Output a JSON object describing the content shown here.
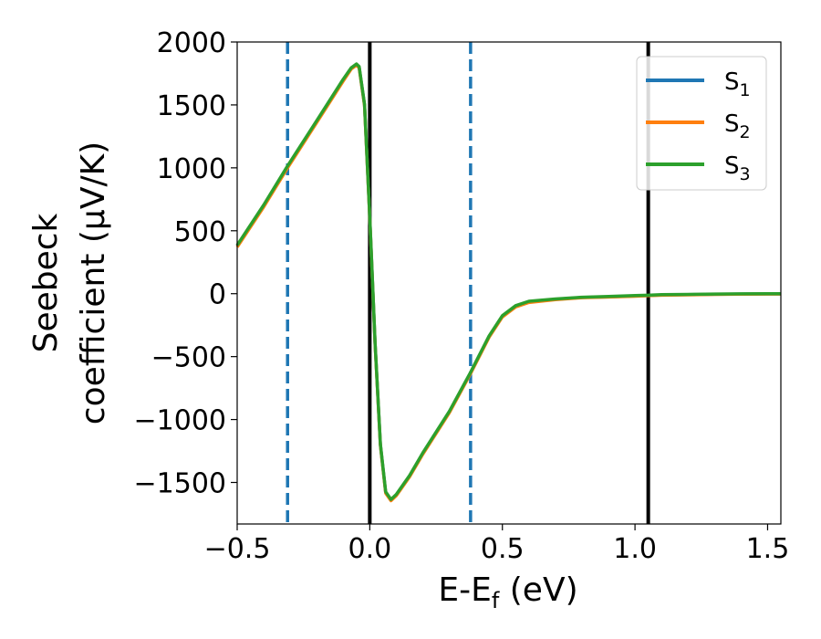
{
  "chart_data": {
    "type": "line",
    "xlabel": "E-E",
    "xlabel_sub": "f",
    "xlabel_unit": " (eV)",
    "ylabel_line1": "Seebeck",
    "ylabel_line2": "coefficient  (μV/K)",
    "xlim": [
      -0.5,
      1.55
    ],
    "ylim": [
      -1830,
      2000
    ],
    "x_ticks": [
      -0.5,
      0.0,
      0.5,
      1.0,
      1.5
    ],
    "x_tick_labels": [
      "−0.5",
      "0.0",
      "0.5",
      "1.0",
      "1.5"
    ],
    "y_ticks": [
      -1500,
      -1000,
      -500,
      0,
      500,
      1000,
      1500,
      2000
    ],
    "y_tick_labels": [
      "−1500",
      "−1000",
      "−500",
      "0",
      "500",
      "1000",
      "1500",
      "2000"
    ],
    "vertical_lines": [
      {
        "x": -0.31,
        "style": "dashed",
        "color": "#1f77b4"
      },
      {
        "x": 0.0,
        "style": "solid",
        "color": "#000000"
      },
      {
        "x": 0.38,
        "style": "dashed",
        "color": "#1f77b4"
      },
      {
        "x": 1.05,
        "style": "solid",
        "color": "#000000"
      }
    ],
    "legend_position": "top-right",
    "x": [
      -0.5,
      -0.4,
      -0.31,
      -0.2,
      -0.1,
      -0.07,
      -0.05,
      -0.04,
      -0.02,
      0.0,
      0.02,
      0.04,
      0.06,
      0.08,
      0.1,
      0.15,
      0.2,
      0.3,
      0.38,
      0.45,
      0.5,
      0.55,
      0.6,
      0.7,
      0.8,
      0.9,
      1.0,
      1.05,
      1.1,
      1.2,
      1.3,
      1.4,
      1.5,
      1.55
    ],
    "series": [
      {
        "name": "S",
        "name_sub": "1",
        "color": "#1f77b4",
        "values": [
          380,
          700,
          1010,
          1370,
          1700,
          1790,
          1820,
          1800,
          1500,
          600,
          -400,
          -1200,
          -1580,
          -1640,
          -1600,
          -1450,
          -1270,
          -940,
          -630,
          -340,
          -180,
          -100,
          -65,
          -45,
          -30,
          -25,
          -18,
          -15,
          -10,
          -8,
          -5,
          -3,
          -2,
          -2
        ]
      },
      {
        "name": "S",
        "name_sub": "2",
        "color": "#ff7f0e",
        "values": [
          370,
          690,
          1000,
          1360,
          1690,
          1785,
          1815,
          1795,
          1495,
          595,
          -405,
          -1205,
          -1585,
          -1645,
          -1605,
          -1455,
          -1275,
          -945,
          -635,
          -345,
          -185,
          -105,
          -70,
          -48,
          -32,
          -27,
          -20,
          -16,
          -12,
          -9,
          -6,
          -4,
          -3,
          -3
        ]
      },
      {
        "name": "S",
        "name_sub": "3",
        "color": "#2ca02c",
        "values": [
          385,
          705,
          1015,
          1375,
          1705,
          1795,
          1825,
          1805,
          1505,
          605,
          -395,
          -1195,
          -1575,
          -1635,
          -1595,
          -1445,
          -1265,
          -935,
          -625,
          -335,
          -175,
          -95,
          -60,
          -42,
          -28,
          -22,
          -15,
          -12,
          -8,
          -6,
          -3,
          -1,
          0,
          0
        ]
      }
    ]
  }
}
